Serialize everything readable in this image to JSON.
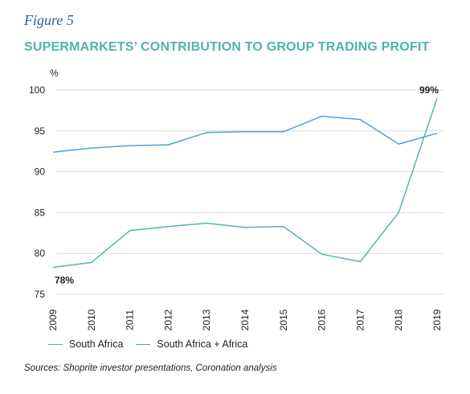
{
  "figure_label": "Figure 5",
  "title": "SUPERMARKETS’ CONTRIBUTION TO GROUP TRADING PROFIT",
  "source": "Sources: Shoprite investor presentations, Coronation analysis",
  "colors": {
    "south_africa": "#4fb8ae",
    "south_africa_africa": "#4fa3d6",
    "title": "#4fb4aa",
    "figure_label": "#2b5f8a"
  },
  "chart_data": {
    "type": "line",
    "ylabel": "%",
    "ylim": [
      75,
      100
    ],
    "yticks": [
      75,
      80,
      85,
      90,
      95,
      100
    ],
    "x": [
      "2009",
      "2010",
      "2011",
      "2012",
      "2013",
      "2014",
      "2015",
      "2016",
      "2017",
      "2018",
      "2019"
    ],
    "series": [
      {
        "name": "South Africa",
        "values": [
          78.3,
          78.9,
          82.8,
          83.3,
          83.7,
          83.2,
          83.3,
          79.9,
          79.0,
          85.0,
          99.0
        ]
      },
      {
        "name": "South Africa + Africa",
        "values": [
          92.4,
          92.9,
          93.2,
          93.3,
          94.8,
          94.9,
          94.9,
          96.8,
          96.4,
          93.4,
          94.7
        ]
      }
    ],
    "annotations": [
      {
        "text": "78%",
        "series": 0,
        "index": 0
      },
      {
        "text": "99%",
        "series": 0,
        "index": 10
      }
    ],
    "grid": true,
    "legend_position": "bottom-left"
  }
}
